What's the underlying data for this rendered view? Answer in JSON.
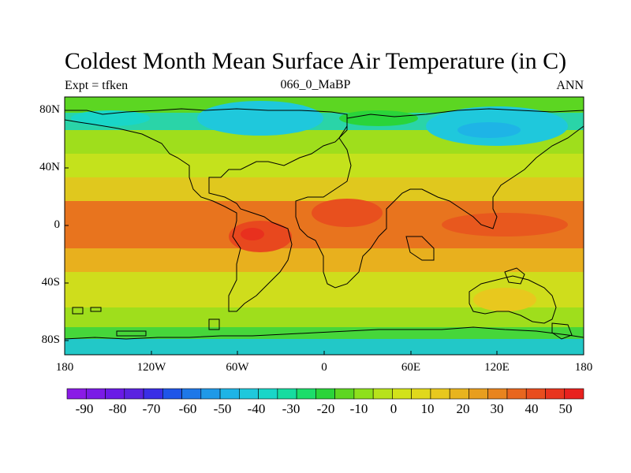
{
  "title": "Coldest Month Mean Surface Air Temperature (in C)",
  "subtitle_left": "Expt = tfken",
  "subtitle_center": "066_0_MaBP",
  "subtitle_right": "ANN",
  "map": {
    "x_ticks": [
      "180",
      "120W",
      "60W",
      "0",
      "60E",
      "120E",
      "180"
    ],
    "y_ticks": [
      "80N",
      "40N",
      "0",
      "40S",
      "80S"
    ]
  },
  "colorbar": {
    "labels": [
      "-90",
      "-80",
      "-70",
      "-60",
      "-50",
      "-40",
      "-30",
      "-20",
      "-10",
      "0",
      "10",
      "20",
      "30",
      "40",
      "50"
    ],
    "colors": [
      "#8a1be6",
      "#7a1be6",
      "#6a1be6",
      "#5a23e0",
      "#3a2ee6",
      "#1f55e8",
      "#1e78e8",
      "#1f99e8",
      "#1eb4e6",
      "#1fc8dc",
      "#19d6c8",
      "#16dca0",
      "#1cdd6a",
      "#2ad43a",
      "#5ed621",
      "#8ee01c",
      "#b7e21c",
      "#d2e21a",
      "#e0d81c",
      "#e8c81e",
      "#e8b41e",
      "#e89e1e",
      "#e8841e",
      "#e8661e",
      "#e84d1e",
      "#e8351e",
      "#e8211e"
    ]
  }
}
